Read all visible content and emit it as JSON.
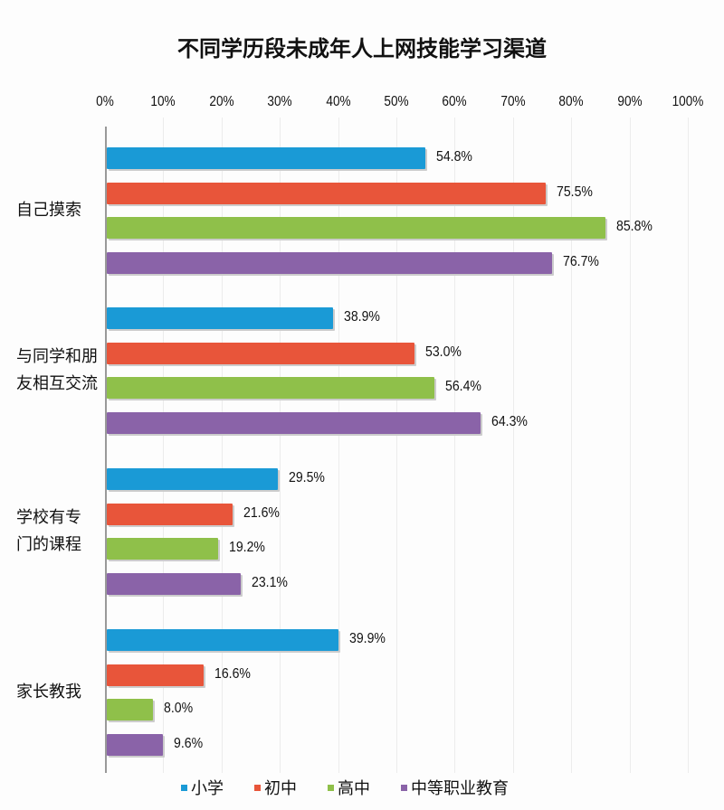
{
  "chart_data": {
    "type": "bar",
    "orientation": "horizontal",
    "title": "不同学历段未成年人上网技能学习渠道",
    "xlabel": "",
    "ylabel": "",
    "xlim": [
      0,
      100
    ],
    "x_ticks": [
      "0%",
      "10%",
      "20%",
      "30%",
      "40%",
      "50%",
      "60%",
      "70%",
      "80%",
      "90%",
      "100%"
    ],
    "categories": [
      "自己摸索",
      "与同学和朋友相互交流",
      "学校有专门的课程",
      "家长教我"
    ],
    "series": [
      {
        "name": "小学",
        "color": "#1a9ad6",
        "values": [
          54.8,
          38.9,
          29.5,
          39.9
        ]
      },
      {
        "name": "初中",
        "color": "#e8553a",
        "values": [
          75.5,
          53.0,
          21.6,
          16.6
        ]
      },
      {
        "name": "高中",
        "color": "#8fc04a",
        "values": [
          85.8,
          56.4,
          19.2,
          8.0
        ]
      },
      {
        "name": "中等职业教育",
        "color": "#8a63a8",
        "values": [
          76.7,
          64.3,
          23.1,
          9.6
        ]
      }
    ],
    "value_labels": [
      [
        "54.8%",
        "75.5%",
        "85.8%",
        "76.7%"
      ],
      [
        "38.9%",
        "53.0%",
        "56.4%",
        "64.3%"
      ],
      [
        "29.5%",
        "21.6%",
        "19.2%",
        "23.1%"
      ],
      [
        "39.9%",
        "16.6%",
        "8.0%",
        "9.6%"
      ]
    ],
    "category_lines": [
      [
        "自己摸索"
      ],
      [
        "与同学和朋",
        "友相互交流"
      ],
      [
        "学校有专",
        "门的课程"
      ],
      [
        "家长教我"
      ]
    ],
    "grid": true,
    "legend_position": "bottom"
  }
}
